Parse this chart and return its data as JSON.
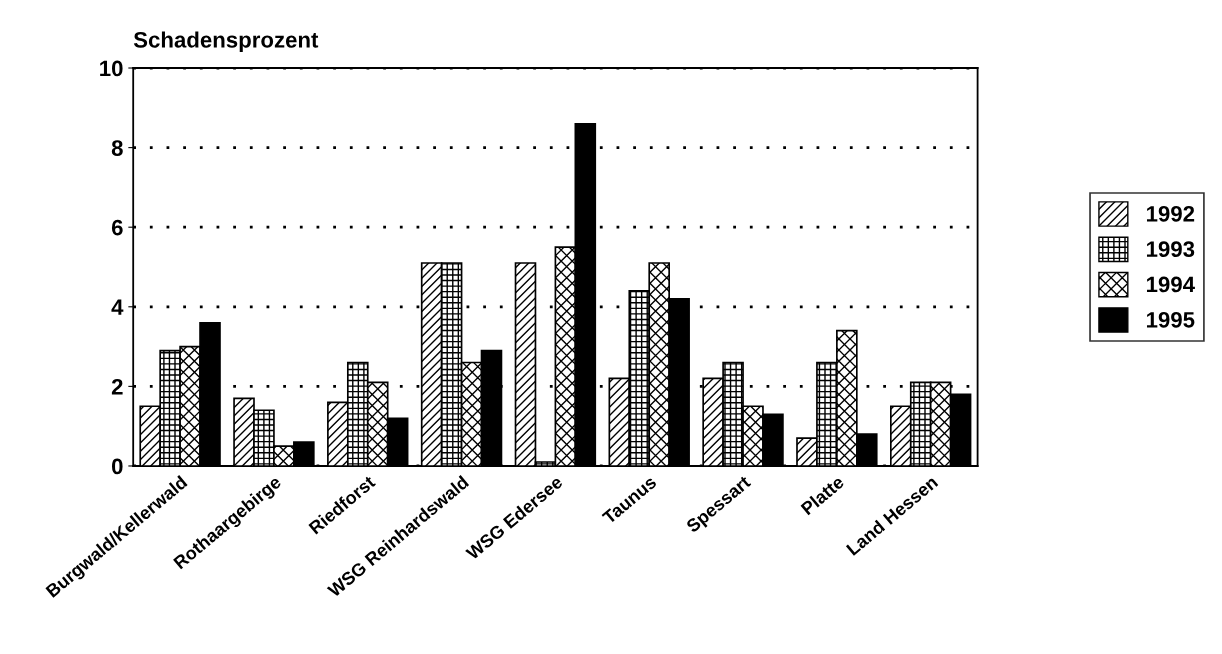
{
  "chart_data": {
    "type": "bar",
    "ylabel": "Schadensprozent",
    "categories": [
      "Burgwald/Kellerwald",
      "Rothaargebirge",
      "Riedforst",
      "WSG Reinhardswald",
      "WSG Edersee",
      "Taunus",
      "Spessart",
      "Platte",
      "Land Hessen"
    ],
    "series": [
      {
        "name": "1992",
        "color": "#000000",
        "values": [
          1.5,
          1.7,
          1.6,
          5.1,
          5.1,
          2.2,
          2.2,
          0.7,
          1.5
        ]
      },
      {
        "name": "1993",
        "color": "#000000",
        "values": [
          2.9,
          1.4,
          2.6,
          5.1,
          0.1,
          4.4,
          2.6,
          2.6,
          2.1
        ]
      },
      {
        "name": "1994",
        "color": "#000000",
        "values": [
          3.0,
          0.5,
          2.1,
          2.6,
          5.5,
          5.1,
          1.5,
          3.4,
          2.1
        ]
      },
      {
        "name": "1995",
        "color": "#000000",
        "values": [
          3.6,
          0.6,
          1.2,
          2.9,
          8.6,
          4.2,
          1.3,
          0.8,
          1.8
        ]
      }
    ],
    "ylim": [
      0,
      10
    ],
    "yticks": [
      0,
      2,
      4,
      6,
      8,
      10
    ],
    "grid": "y",
    "legend": "right"
  }
}
